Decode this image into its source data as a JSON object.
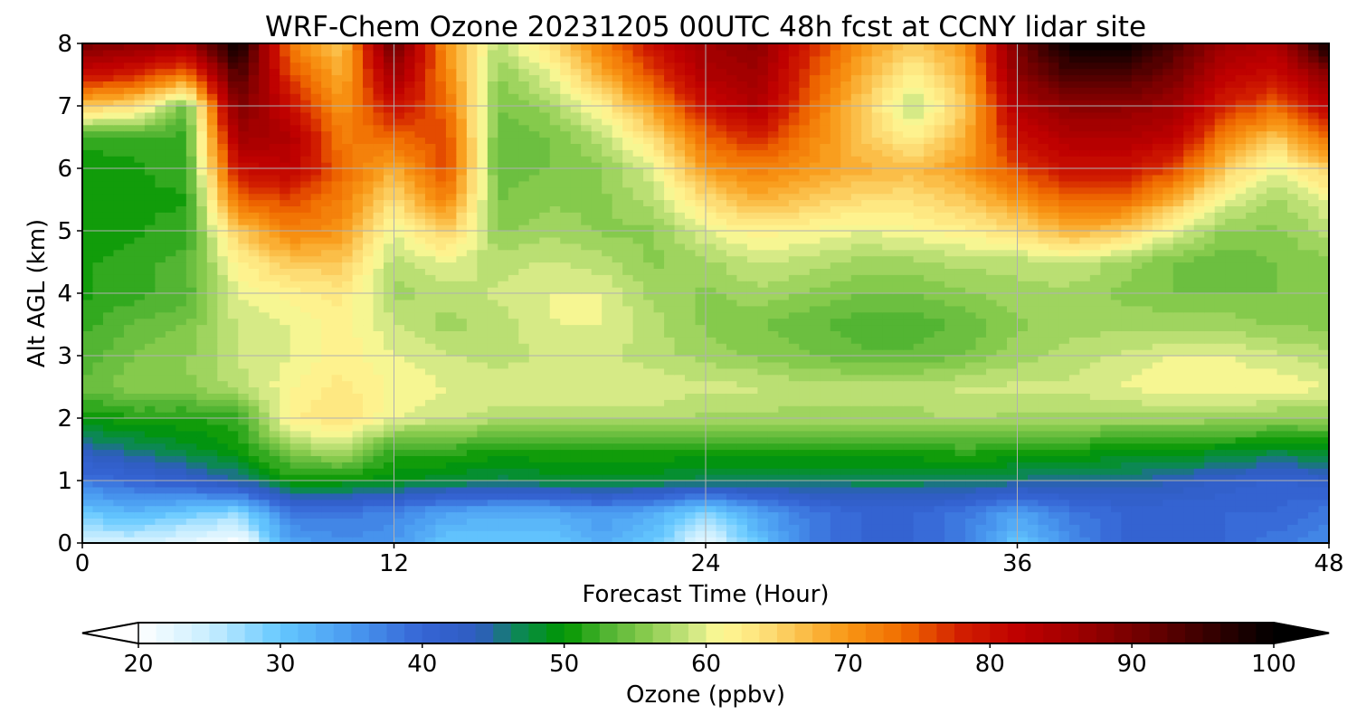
{
  "chart_data": {
    "type": "heatmap",
    "title": "WRF-Chem Ozone  20231205 00UTC 48h fcst at CCNY lidar site",
    "xlabel": "Forecast Time (Hour)",
    "ylabel": "Alt AGL (km)",
    "xlim": [
      0,
      48
    ],
    "ylim": [
      0,
      8
    ],
    "grid": true,
    "x_ticks": [
      {
        "value": 0,
        "label": "0"
      },
      {
        "value": 12,
        "label": "12"
      },
      {
        "value": 24,
        "label": "24"
      },
      {
        "value": 36,
        "label": "36"
      },
      {
        "value": 48,
        "label": "48"
      }
    ],
    "y_ticks": [
      {
        "value": 0,
        "label": "0"
      },
      {
        "value": 1,
        "label": "1"
      },
      {
        "value": 2,
        "label": "2"
      },
      {
        "value": 3,
        "label": "3"
      },
      {
        "value": 4,
        "label": "4"
      },
      {
        "value": 5,
        "label": "5"
      },
      {
        "value": 6,
        "label": "6"
      },
      {
        "value": 7,
        "label": "7"
      },
      {
        "value": 8,
        "label": "8"
      }
    ],
    "x": [
      0,
      2,
      4,
      6,
      8,
      10,
      12,
      14,
      16,
      18,
      20,
      22,
      24,
      26,
      28,
      30,
      32,
      34,
      36,
      38,
      40,
      42,
      44,
      46,
      48
    ],
    "y": [
      0,
      0.5,
      1,
      1.5,
      2,
      2.5,
      3,
      3.5,
      4,
      4.5,
      5,
      5.5,
      6,
      6.5,
      7,
      7.5,
      8
    ],
    "z": [
      [
        24,
        24,
        22,
        20,
        34,
        36,
        35,
        30,
        30,
        30,
        33,
        30,
        22,
        30,
        38,
        40,
        40,
        38,
        30,
        36,
        40,
        40,
        40,
        38,
        36
      ],
      [
        30,
        32,
        30,
        28,
        38,
        38,
        37,
        34,
        33,
        33,
        35,
        33,
        28,
        34,
        38,
        40,
        40,
        38,
        34,
        38,
        40,
        40,
        40,
        40,
        38
      ],
      [
        38,
        40,
        42,
        45,
        50,
        50,
        49,
        48,
        47,
        48,
        48,
        48,
        47,
        47,
        47,
        47,
        47,
        47,
        46,
        45,
        45,
        44,
        42,
        41,
        42
      ],
      [
        44,
        46,
        48,
        50,
        56,
        58,
        52,
        52,
        51,
        51,
        51,
        51,
        51,
        51,
        51,
        51,
        51,
        52,
        51,
        51,
        50,
        50,
        49,
        48,
        49
      ],
      [
        50,
        51,
        51,
        52,
        62,
        64,
        60,
        59,
        58,
        58,
        58,
        58,
        57,
        57,
        57,
        57,
        57,
        58,
        57,
        57,
        57,
        57,
        57,
        56,
        56
      ],
      [
        54,
        56,
        56,
        58,
        61,
        63,
        61,
        60,
        60,
        60,
        60,
        60,
        59,
        59,
        58,
        58,
        58,
        59,
        59,
        59,
        60,
        61,
        61,
        61,
        60
      ],
      [
        53,
        55,
        56,
        59,
        60,
        62,
        60,
        59,
        58,
        59,
        59,
        58,
        57,
        56,
        55,
        54,
        54,
        55,
        57,
        58,
        59,
        60,
        60,
        59,
        58
      ],
      [
        52,
        54,
        55,
        59,
        60,
        62,
        59,
        57,
        58,
        60,
        60,
        58,
        56,
        55,
        54,
        53,
        53,
        54,
        56,
        57,
        57,
        57,
        57,
        56,
        56
      ],
      [
        51,
        52,
        53,
        60,
        62,
        63,
        57,
        58,
        59,
        60,
        60,
        57,
        56,
        57,
        56,
        55,
        55,
        56,
        57,
        57,
        56,
        55,
        55,
        55,
        56
      ],
      [
        51,
        52,
        53,
        62,
        66,
        66,
        58,
        60,
        58,
        59,
        58,
        56,
        57,
        59,
        58,
        57,
        57,
        58,
        58,
        59,
        57,
        55,
        54,
        55,
        56
      ],
      [
        50,
        51,
        52,
        66,
        72,
        70,
        60,
        66,
        56,
        57,
        56,
        56,
        60,
        62,
        61,
        60,
        61,
        62,
        64,
        68,
        66,
        60,
        56,
        56,
        58
      ],
      [
        50,
        51,
        51,
        74,
        76,
        72,
        64,
        72,
        55,
        56,
        56,
        58,
        64,
        68,
        66,
        64,
        64,
        66,
        70,
        74,
        74,
        68,
        60,
        57,
        60
      ],
      [
        50,
        51,
        52,
        80,
        82,
        74,
        68,
        76,
        54,
        55,
        56,
        60,
        70,
        72,
        70,
        68,
        67,
        70,
        76,
        80,
        80,
        76,
        66,
        60,
        66
      ],
      [
        52,
        52,
        52,
        86,
        84,
        72,
        74,
        76,
        54,
        55,
        58,
        64,
        74,
        78,
        72,
        66,
        62,
        68,
        80,
        84,
        84,
        82,
        72,
        66,
        74
      ],
      [
        66,
        64,
        54,
        90,
        80,
        70,
        80,
        74,
        55,
        57,
        62,
        70,
        80,
        84,
        74,
        66,
        58,
        66,
        84,
        88,
        88,
        86,
        78,
        74,
        82
      ],
      [
        80,
        78,
        72,
        94,
        76,
        68,
        86,
        72,
        56,
        60,
        68,
        76,
        84,
        86,
        76,
        68,
        62,
        68,
        88,
        94,
        94,
        90,
        82,
        80,
        88
      ],
      [
        90,
        88,
        86,
        100,
        72,
        66,
        92,
        70,
        58,
        64,
        72,
        80,
        86,
        88,
        78,
        70,
        66,
        70,
        90,
        100,
        100,
        94,
        86,
        84,
        100
      ]
    ],
    "colorbar": {
      "label": "Ozone  (ppbv)",
      "min": 20,
      "max": 100,
      "extend": "both",
      "orientation": "horizontal",
      "levels_step": 1.25,
      "ticks": [
        {
          "value": 20,
          "label": "20"
        },
        {
          "value": 30,
          "label": "30"
        },
        {
          "value": 40,
          "label": "40"
        },
        {
          "value": 50,
          "label": "50"
        },
        {
          "value": 60,
          "label": "60"
        },
        {
          "value": 70,
          "label": "70"
        },
        {
          "value": 80,
          "label": "80"
        },
        {
          "value": 90,
          "label": "90"
        },
        {
          "value": 100,
          "label": "100"
        }
      ],
      "color_stops": [
        {
          "value": 20,
          "color": "#ffffff"
        },
        {
          "value": 25,
          "color": "#c8eeff"
        },
        {
          "value": 30,
          "color": "#64c8ff"
        },
        {
          "value": 35,
          "color": "#4a9af0"
        },
        {
          "value": 40,
          "color": "#3564d4"
        },
        {
          "value": 44,
          "color": "#2e5cc0"
        },
        {
          "value": 47,
          "color": "#0a8a4e"
        },
        {
          "value": 50,
          "color": "#009600"
        },
        {
          "value": 53,
          "color": "#50b432"
        },
        {
          "value": 56,
          "color": "#8ccd50"
        },
        {
          "value": 59,
          "color": "#cde682"
        },
        {
          "value": 61,
          "color": "#fffa96"
        },
        {
          "value": 64,
          "color": "#fde07a"
        },
        {
          "value": 67,
          "color": "#fbbc46"
        },
        {
          "value": 70,
          "color": "#f89614"
        },
        {
          "value": 74,
          "color": "#f06a00"
        },
        {
          "value": 78,
          "color": "#d21e00"
        },
        {
          "value": 82,
          "color": "#be0000"
        },
        {
          "value": 86,
          "color": "#a00000"
        },
        {
          "value": 90,
          "color": "#780000"
        },
        {
          "value": 95,
          "color": "#3c0000"
        },
        {
          "value": 100,
          "color": "#000000"
        }
      ]
    }
  }
}
